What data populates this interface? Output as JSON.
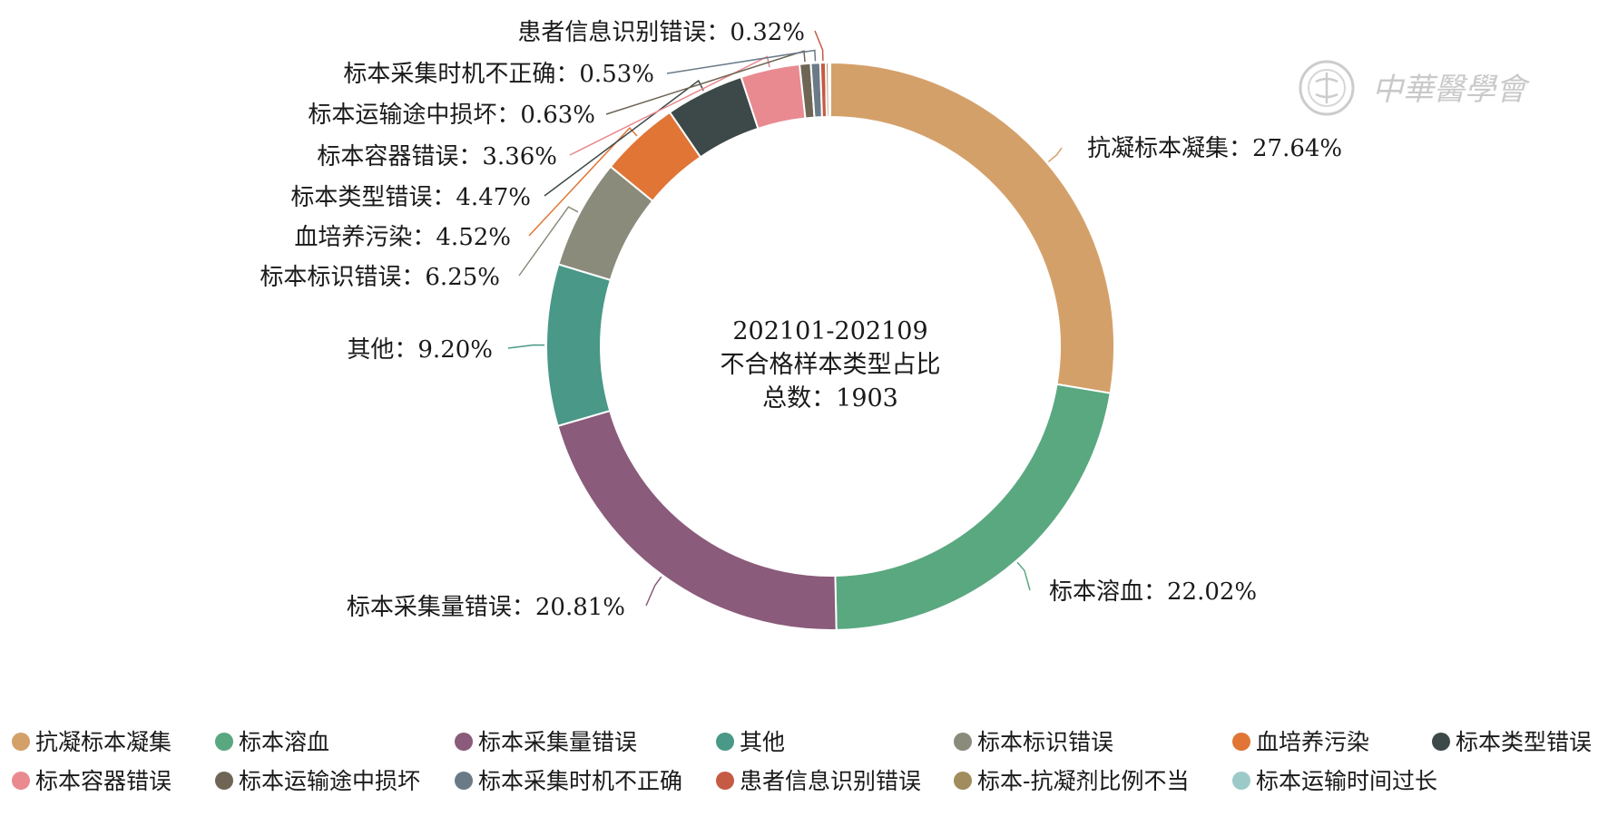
{
  "watermark": {
    "text": "中華醫學會"
  },
  "chart_data": {
    "type": "pie",
    "donut": true,
    "center_text": [
      "202101-202109",
      "不合格样本类型占比",
      "总数：1903"
    ],
    "label_separator": "：",
    "legend_position": "bottom",
    "slices": [
      {
        "name": "抗凝标本凝集",
        "value": 27.64,
        "value_label": "27.64%",
        "color": "#d4a06a"
      },
      {
        "name": "标本溶血",
        "value": 22.02,
        "value_label": "22.02%",
        "color": "#5aa880"
      },
      {
        "name": "标本采集量错误",
        "value": 20.81,
        "value_label": "20.81%",
        "color": "#8a5b7a"
      },
      {
        "name": "其他",
        "value": 9.2,
        "value_label": "9.20%",
        "color": "#4a9887"
      },
      {
        "name": "标本标识错误",
        "value": 6.25,
        "value_label": "6.25%",
        "color": "#8b8b7c"
      },
      {
        "name": "血培养污染",
        "value": 4.52,
        "value_label": "4.52%",
        "color": "#e07535"
      },
      {
        "name": "标本类型错误",
        "value": 4.47,
        "value_label": "4.47%",
        "color": "#3d4848"
      },
      {
        "name": "标本容器错误",
        "value": 3.36,
        "value_label": "3.36%",
        "color": "#e88a90"
      },
      {
        "name": "标本运输途中损坏",
        "value": 0.63,
        "value_label": "0.63%",
        "color": "#6e6554"
      },
      {
        "name": "标本采集时机不正确",
        "value": 0.53,
        "value_label": "0.53%",
        "color": "#6a7a86"
      },
      {
        "name": "患者信息识别错误",
        "value": 0.32,
        "value_label": "0.32%",
        "color": "#c55a45"
      },
      {
        "name": "标本-抗凝剂比例不当",
        "value": 0.16,
        "color": "#a08c5c"
      },
      {
        "name": "标本运输时间过长",
        "value": 0.09,
        "color": "#9ccac8"
      }
    ]
  }
}
